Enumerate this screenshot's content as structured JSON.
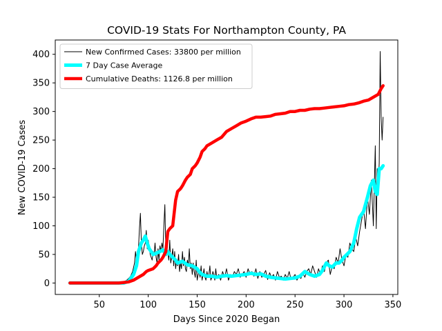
{
  "chart_data": {
    "type": "line",
    "title": "COVID-19 Stats For Northampton County, PA",
    "xlabel": "Days Since 2020 Began",
    "ylabel": "New COVID-19 Cases",
    "xlim": [
      5,
      355
    ],
    "ylim": [
      -20,
      425
    ],
    "xticks": [
      50,
      100,
      150,
      200,
      250,
      300,
      350
    ],
    "yticks": [
      0,
      50,
      100,
      150,
      200,
      250,
      300,
      350,
      400
    ],
    "grid": false,
    "legend_position": "top-left",
    "series": [
      {
        "name": "New Confirmed Cases: 33800 per million",
        "color": "#000000",
        "width": 1,
        "x": [
          20,
          70,
          75,
          78,
          80,
          82,
          84,
          86,
          87,
          88,
          89,
          90,
          91,
          92,
          93,
          94,
          95,
          96,
          97,
          98,
          99,
          100,
          101,
          102,
          103,
          104,
          105,
          106,
          107,
          108,
          109,
          110,
          111,
          112,
          113,
          114,
          115,
          116,
          117,
          118,
          119,
          120,
          121,
          122,
          123,
          124,
          125,
          126,
          127,
          128,
          129,
          130,
          131,
          132,
          133,
          134,
          135,
          136,
          137,
          138,
          139,
          140,
          141,
          142,
          143,
          144,
          145,
          146,
          147,
          148,
          149,
          150,
          151,
          152,
          153,
          154,
          155,
          156,
          157,
          158,
          159,
          160,
          161,
          162,
          163,
          164,
          165,
          166,
          167,
          168,
          169,
          170,
          172,
          174,
          176,
          178,
          180,
          182,
          184,
          186,
          188,
          190,
          192,
          194,
          196,
          198,
          200,
          202,
          204,
          206,
          208,
          210,
          212,
          214,
          216,
          218,
          220,
          222,
          224,
          226,
          228,
          230,
          232,
          234,
          236,
          238,
          240,
          242,
          244,
          246,
          248,
          250,
          252,
          254,
          256,
          258,
          260,
          262,
          264,
          266,
          268,
          270,
          272,
          274,
          276,
          278,
          280,
          282,
          284,
          286,
          288,
          290,
          292,
          294,
          296,
          298,
          300,
          302,
          304,
          306,
          308,
          310,
          312,
          314,
          316,
          318,
          320,
          322,
          324,
          326,
          328,
          330,
          332,
          333,
          334,
          335,
          336,
          337,
          338,
          339,
          340
        ],
        "y": [
          0,
          0,
          2,
          5,
          8,
          12,
          20,
          35,
          55,
          40,
          30,
          60,
          95,
          122,
          70,
          50,
          55,
          65,
          70,
          92,
          60,
          75,
          65,
          50,
          45,
          40,
          55,
          50,
          70,
          45,
          35,
          60,
          40,
          65,
          55,
          70,
          60,
          100,
          137,
          60,
          50,
          55,
          40,
          75,
          35,
          45,
          60,
          30,
          55,
          25,
          40,
          30,
          50,
          20,
          35,
          25,
          55,
          30,
          45,
          25,
          20,
          40,
          30,
          60,
          25,
          35,
          15,
          35,
          20,
          10,
          40,
          5,
          15,
          20,
          10,
          30,
          5,
          15,
          25,
          10,
          5,
          20,
          10,
          15,
          30,
          5,
          10,
          20,
          15,
          5,
          25,
          10,
          15,
          5,
          20,
          10,
          25,
          5,
          15,
          10,
          20,
          15,
          25,
          10,
          15,
          20,
          10,
          25,
          15,
          20,
          12,
          25,
          8,
          20,
          10,
          15,
          22,
          6,
          18,
          10,
          15,
          5,
          20,
          10,
          12,
          5,
          15,
          8,
          20,
          6,
          10,
          15,
          5,
          12,
          8,
          18,
          10,
          20,
          25,
          15,
          30,
          20,
          10,
          25,
          15,
          30,
          20,
          35,
          40,
          15,
          30,
          25,
          45,
          35,
          60,
          40,
          30,
          50,
          45,
          70,
          60,
          55,
          80,
          65,
          90,
          110,
          130,
          95,
          150,
          120,
          180,
          100,
          240,
          95,
          200,
          170,
          210,
          405,
          290,
          250,
          290
        ]
      },
      {
        "name": "7 Day Case Average",
        "color": "#00ffff",
        "width": 5,
        "x": [
          20,
          75,
          80,
          85,
          88,
          90,
          93,
          95,
          97,
          99,
          101,
          103,
          105,
          108,
          112,
          115,
          118,
          120,
          122,
          125,
          128,
          130,
          135,
          140,
          145,
          150,
          152,
          155,
          160,
          165,
          170,
          175,
          180,
          185,
          190,
          195,
          200,
          205,
          210,
          215,
          220,
          225,
          230,
          235,
          240,
          245,
          250,
          255,
          260,
          265,
          270,
          275,
          278,
          282,
          285,
          288,
          292,
          295,
          298,
          300,
          303,
          306,
          310,
          313,
          316,
          320,
          324,
          327,
          330,
          332,
          334,
          336,
          338,
          340
        ],
        "y": [
          0,
          0,
          3,
          15,
          30,
          55,
          70,
          75,
          82,
          70,
          60,
          55,
          50,
          52,
          55,
          58,
          50,
          55,
          50,
          45,
          40,
          35,
          38,
          32,
          30,
          25,
          20,
          15,
          12,
          12,
          10,
          12,
          13,
          12,
          13,
          14,
          15,
          17,
          15,
          16,
          12,
          10,
          9,
          8,
          7,
          8,
          9,
          12,
          20,
          15,
          12,
          15,
          22,
          35,
          30,
          28,
          35,
          35,
          40,
          45,
          50,
          55,
          70,
          95,
          115,
          125,
          150,
          170,
          180,
          160,
          155,
          200,
          200,
          205
        ]
      },
      {
        "name": "Cumulative Deaths: 1126.8 per million",
        "color": "#ff0000",
        "width": 4.5,
        "x": [
          20,
          70,
          75,
          80,
          85,
          90,
          95,
          98,
          100,
          105,
          108,
          110,
          113,
          115,
          118,
          120,
          122,
          125,
          128,
          130,
          133,
          135,
          138,
          140,
          143,
          145,
          148,
          150,
          153,
          155,
          158,
          160,
          165,
          170,
          175,
          180,
          185,
          190,
          195,
          200,
          205,
          210,
          215,
          220,
          225,
          230,
          235,
          240,
          245,
          250,
          255,
          260,
          265,
          270,
          275,
          280,
          285,
          290,
          295,
          300,
          305,
          310,
          315,
          320,
          325,
          330,
          335,
          338,
          340
        ],
        "y": [
          0,
          0,
          1,
          2,
          5,
          10,
          15,
          20,
          22,
          25,
          30,
          35,
          40,
          45,
          55,
          90,
          95,
          100,
          145,
          160,
          165,
          170,
          180,
          185,
          190,
          200,
          205,
          210,
          220,
          230,
          235,
          240,
          245,
          250,
          255,
          265,
          270,
          275,
          280,
          283,
          287,
          290,
          290,
          291,
          292,
          295,
          296,
          297,
          300,
          300,
          302,
          302,
          304,
          305,
          305,
          306,
          307,
          308,
          309,
          310,
          312,
          313,
          315,
          318,
          320,
          325,
          330,
          340,
          345
        ]
      }
    ]
  }
}
